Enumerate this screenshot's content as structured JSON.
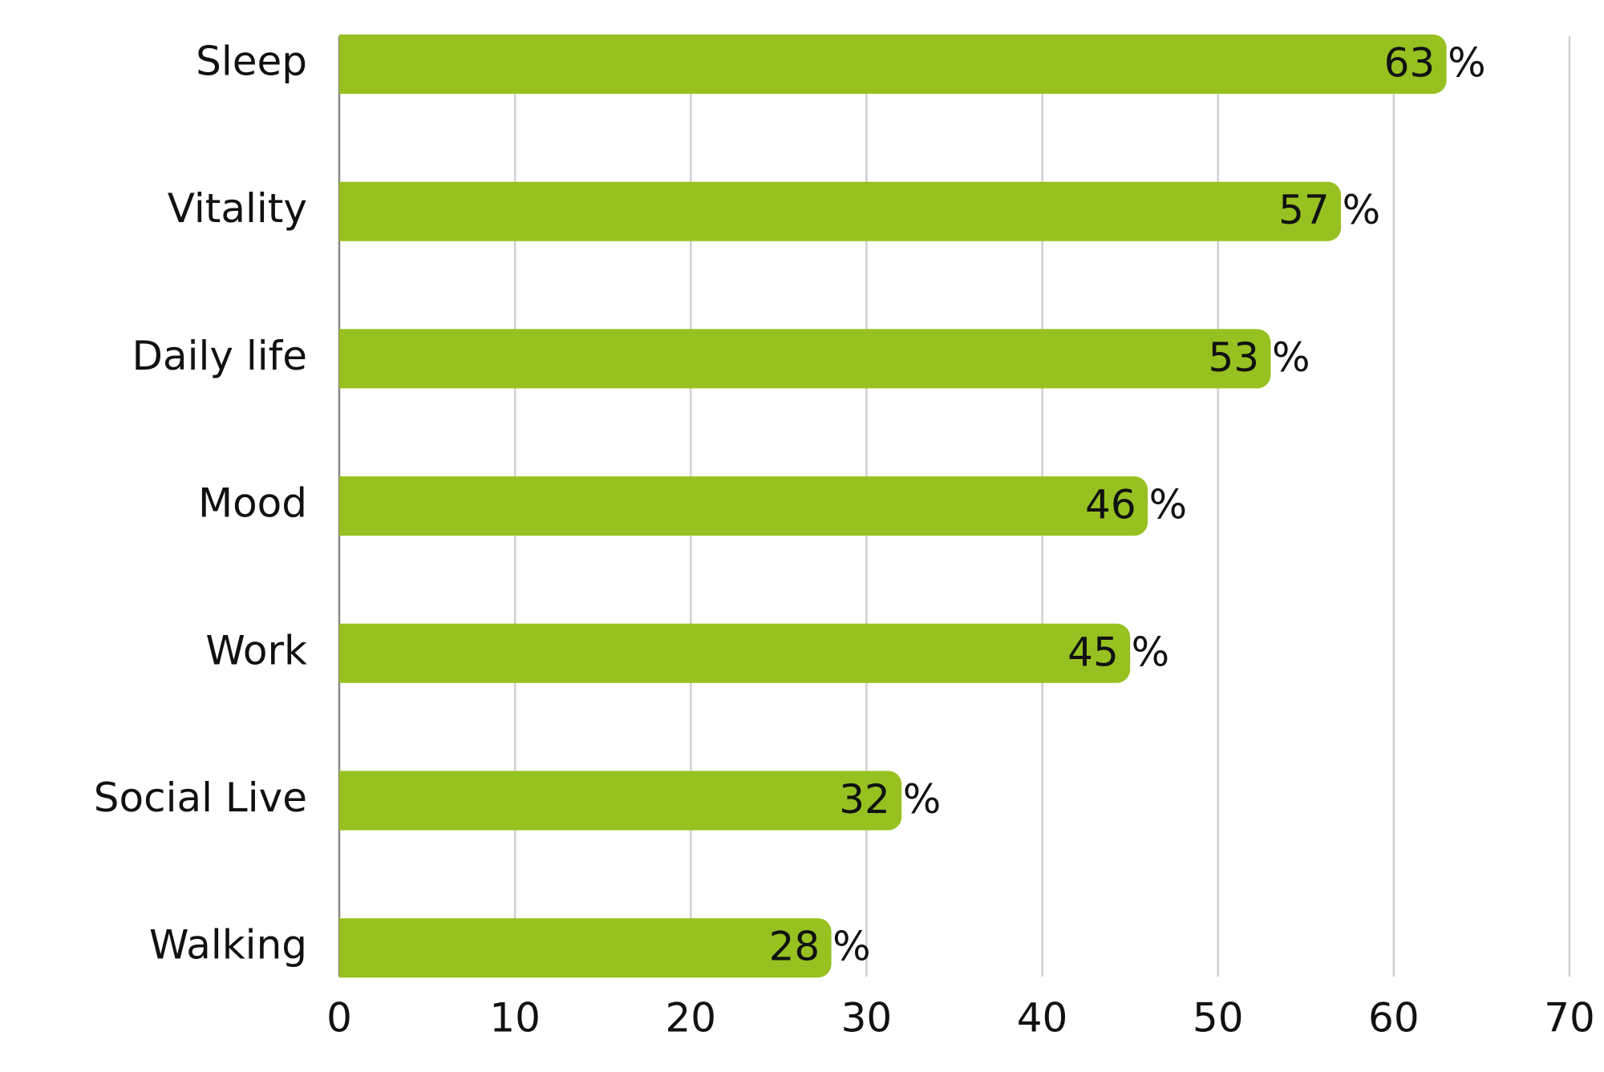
{
  "chart_data": {
    "type": "bar",
    "orientation": "horizontal",
    "categories": [
      "Sleep",
      "Vitality",
      "Daily life",
      "Mood",
      "Work",
      "Social Live",
      "Walking"
    ],
    "values": [
      63,
      57,
      53,
      46,
      45,
      32,
      28
    ],
    "value_labels": [
      "63 %",
      "57 %",
      "53 %",
      "46 %",
      "45 %",
      "32 %",
      "28 %"
    ],
    "color": "#97c121",
    "xlim": [
      0,
      70
    ],
    "xticks": [
      0,
      10,
      20,
      30,
      40,
      50,
      60,
      70
    ],
    "grid": true
  }
}
